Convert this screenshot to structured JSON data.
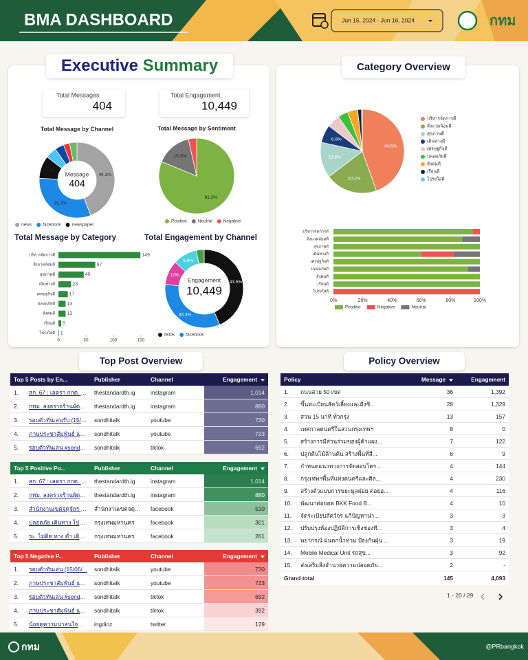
{
  "header": {
    "title": "BMA DASHBOARD",
    "date_range": "Jun 15, 2024 - Jun 16, 2024",
    "logo": "กทม"
  },
  "executive_summary": {
    "title_part1": "Executive",
    "title_part2": "Summary",
    "kpis": [
      {
        "label": "Total Messages",
        "value": "404"
      },
      {
        "label": "Total Engagement",
        "value": "10,449"
      }
    ]
  },
  "chart_data": [
    {
      "type": "donut",
      "title": "Total Message by Channel",
      "center_label": "Message",
      "center_value": 404,
      "categories": [
        "news",
        "facebook",
        "newspaper",
        null,
        null,
        null,
        null
      ],
      "values": [
        44.1,
        31.7,
        9.7,
        4.8,
        3.9,
        2.6,
        3.2
      ],
      "value_labels": [
        "44.1%",
        "31.7%",
        "9.7%",
        null,
        null,
        null,
        null
      ],
      "colors": [
        "#a3a3a3",
        "#1e88e5",
        "#111111",
        "#4fc3f7",
        "#0d47a1",
        "#e53935",
        "#66bb6a"
      ],
      "legend": "bottom"
    },
    {
      "type": "pie",
      "title": "Total Message by Sentiment",
      "categories": [
        "Positive",
        "Neutral",
        "Negative"
      ],
      "values": [
        81.2,
        15.3,
        3.5
      ],
      "value_labels": [
        "81.2%",
        "15.3%",
        null
      ],
      "colors": [
        "#7cb342",
        "#757575",
        "#ef5350"
      ],
      "legend": "bottom"
    },
    {
      "type": "bar",
      "orientation": "horizontal",
      "title": "Total Message by Category",
      "categories": [
        "บริหารจัดการดี",
        "สิ่งแวดล้อมดี",
        "สุขภาพดี",
        "เดินทางดี",
        "เศรษฐกิจดี",
        "ปลอดภัยดี",
        "สังคมดี",
        "เรียนดี",
        "โปร่งใสดี"
      ],
      "values": [
        149,
        67,
        46,
        23,
        17,
        13,
        13,
        5,
        1
      ],
      "color": "#2e8b3e",
      "xlim": [
        0,
        150
      ],
      "xticks": [
        0,
        50,
        100,
        150
      ]
    },
    {
      "type": "donut",
      "title": "Total Engagement by Channel",
      "center_label": "Engagement",
      "center_value": "10,449",
      "categories": [
        "tiktok",
        "facebook",
        null,
        null,
        null
      ],
      "values": [
        43.5,
        33.3,
        10,
        9.9,
        3.3
      ],
      "value_labels": [
        "43.5%",
        "33.3%",
        "10%",
        "9.9%",
        null
      ],
      "colors": [
        "#111111",
        "#1e88e5",
        "#e040a0",
        "#4dd0e1",
        "#43a047"
      ],
      "legend": "bottom"
    },
    {
      "type": "pie",
      "title": "Category Overview",
      "categories": [
        "บริหารจัดการดี",
        "สิ่งแวดล้อมดี",
        "สุขภาพดี",
        "เดินทางดี",
        "เศรษฐกิจดี",
        "ปลอดภัยดี",
        "สังคมดี",
        "เรียนดี",
        "โปร่งใสดี"
      ],
      "values": [
        44.6,
        20.1,
        13.8,
        6.9,
        5.1,
        3.9,
        3.9,
        1.5,
        0.3
      ],
      "value_labels": [
        "44.6%",
        "20.1%",
        "13.8%",
        "6.9%",
        null,
        null,
        null,
        null,
        null
      ],
      "colors": [
        "#f07f5b",
        "#8aab4f",
        "#a8d5c9",
        "#1a3c7a",
        "#ecc9c4",
        "#3fbf3f",
        "#f5a623",
        "#0d2545",
        "#6ec6e6"
      ],
      "legend": "right"
    },
    {
      "type": "stacked_bar",
      "orientation": "horizontal",
      "categories": [
        "บริหารจัดการดี",
        "สิ่งแวดล้อมดี",
        "สุขภาพดี",
        "เดินทางดี",
        "เศรษฐกิจดี",
        "ปลอดภัยดี",
        "สังคมดี",
        "เรียนดี",
        "โปร่งใสดี"
      ],
      "series": [
        {
          "name": "Positive",
          "color": "#7cb342",
          "values": [
            95,
            88,
            100,
            60,
            100,
            92,
            100,
            100,
            0
          ]
        },
        {
          "name": "Negative",
          "color": "#ef5350",
          "values": [
            5,
            0,
            0,
            22,
            0,
            0,
            0,
            0,
            100
          ]
        },
        {
          "name": "Neutral",
          "color": "#757575",
          "values": [
            0,
            12,
            0,
            18,
            0,
            8,
            0,
            0,
            0
          ]
        }
      ],
      "xlim": [
        0,
        100
      ],
      "xticks": [
        {
          "value": 0,
          "label": "0%"
        },
        {
          "value": 20,
          "label": "20%"
        },
        {
          "value": 40,
          "label": "40%"
        },
        {
          "value": 60,
          "label": "60%"
        },
        {
          "value": 80,
          "label": "80%"
        },
        {
          "value": 100,
          "label": "100%"
        }
      ],
      "legend": "bottom"
    }
  ],
  "top_post_title": "Top Post Overview",
  "policy_title": "Policy Overview",
  "tables": {
    "top_posts": {
      "header": [
        "Top 5 Posts by En...",
        "Publisher",
        "Channel",
        "Engagement"
      ],
      "rows": [
        [
          "1.",
          "สก. 67 : เลตรา กกต. เลือ...",
          "thestandardth.ig",
          "instagram",
          "1,014"
        ],
        [
          "2.",
          "กทม. ลงตรวจร้านผัดไทยดั...",
          "thestandardth.ig",
          "instagram",
          "880"
        ],
        [
          "3.",
          "รอบตัวทันเล่นรับ (15/06/6...",
          "sondhitalk",
          "youtube",
          "730"
        ],
        [
          "4.",
          "ภาษประชาสัมพันธ์ และโปโล...",
          "sondhitalk",
          "youtube",
          "723"
        ],
        [
          "5.",
          "รอบตัวทันเล่น #sondhiT...",
          "sondhitalk",
          "tiktok",
          "692"
        ]
      ]
    },
    "positive_posts": {
      "header": [
        "Top 5 Positive Po...",
        "Publisher",
        "Channel",
        "Engagement"
      ],
      "rows": [
        [
          "1.",
          "สก. 67 : เลตรา กกต. เลือ...",
          "thestandardth.ig",
          "instagram",
          "1,014"
        ],
        [
          "2.",
          "กทม. ลงตรวจร้านผัดไทยดั...",
          "thestandardth.ig",
          "instagram",
          "880"
        ],
        [
          "3.",
          "สำนักงานเขตจตุจักร โพส...",
          "สำนักงานเขตจตุจักร",
          "facebook",
          "510"
        ],
        [
          "4.",
          "ปลอดภัย เดินทาง โปร่งแ...",
          "กรุงเทพมหานคร",
          "facebook",
          "301"
        ],
        [
          "5.",
          "ระ. ไม่ติด ทาง ต่ำ เดินป...",
          "กรุงเทพมหานคร",
          "facebook",
          "261"
        ]
      ]
    },
    "negative_posts": {
      "header": [
        "Top 5 Negative P...",
        "Publisher",
        "Channel",
        "Engagement"
      ],
      "rows": [
        [
          "1.",
          "รอบตัวทันเล่น (15/06/...",
          "sondhitalk",
          "youtube",
          "730"
        ],
        [
          "2.",
          "ภาษประชาสัมพันธ์ และโปโ...",
          "sondhitalk",
          "youtube",
          "723"
        ],
        [
          "3.",
          "รอบตัวทันเล่น #sondhi...",
          "sondhitalk",
          "tiktok",
          "692"
        ],
        [
          "4.",
          "ภาษประชาสัมพันธ์ และโปโ...",
          "sondhitalk",
          "tiktok",
          "392"
        ],
        [
          "5.",
          "น้อยดูความน่าสนใจของ...",
          "ingdinz",
          "twitter",
          "129"
        ]
      ]
    },
    "policy": {
      "header": [
        "Policy",
        "Message",
        "Engagement"
      ],
      "rows": [
        [
          "1.",
          "ถนนสาย 50 เขต",
          "36",
          "1,392"
        ],
        [
          "2.",
          "ขึ้นทะเบียนสัตว์เลี้ยงและฝังชิ...",
          "28",
          "1,329"
        ],
        [
          "3.",
          "สวน 15 นาที ทั่วกรุง",
          "13",
          "157"
        ],
        [
          "4.",
          "เทศกาลดนตรีในสวนกรุงเทพฯ",
          "8",
          "0"
        ],
        [
          "5.",
          "สร้างการมีส่วนร่วมของผู้ค้าแผง...",
          "7",
          "122"
        ],
        [
          "6.",
          "ปลูกต้นไม้ล้านต้น สร้างพื้นที่สี...",
          "6",
          "9"
        ],
        [
          "7.",
          "กำหนดแนวทางการจัดสอบโคร...",
          "4",
          "144"
        ],
        [
          "8.",
          "กรุงเทพฯพื้นที่แห่งดนตรีและศิล...",
          "4",
          "230"
        ],
        [
          "9.",
          "สร้างตัวแบบการขยะมูลฝอย ต่อยอ...",
          "4",
          "116"
        ],
        [
          "10.",
          "พัฒนาต่อยอด BKK Food B...",
          "4",
          "10"
        ],
        [
          "11.",
          "จัดระเบียบสัตว์จร แก้ปัญหาน่า...",
          "3",
          "3"
        ],
        [
          "12.",
          "ปรับปรุงห้องปฏิบัติการเชิงช่องที...",
          "3",
          "4"
        ],
        [
          "13.",
          "พยากรณ์ ฝนตกน้ำท่วม ป้องกันฝุ่น ...",
          "3",
          "19"
        ],
        [
          "14.",
          "Mobile Medical Unit รถสุข...",
          "3",
          "92"
        ],
        [
          "15.",
          "ส่งเสริมสิ่งอำนวยความปลอดภัย...",
          "2",
          "-"
        ]
      ],
      "grand_total": [
        "Grand total",
        "145",
        "4,093"
      ],
      "pager": "1 - 20 / 29"
    }
  },
  "footer": {
    "logo": "กทม",
    "handle": "@PRbangkok"
  }
}
